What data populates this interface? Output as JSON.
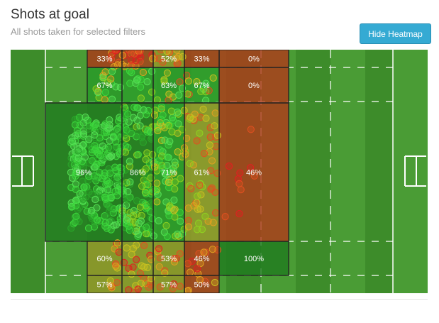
{
  "header": {
    "title": "Shots at goal",
    "subtitle": "All shots taken for selected filters",
    "heatmap_button": "Hide Heatmap"
  },
  "colors": {
    "grass_dark": "#3d8c2a",
    "grass_light": "#4a9c35",
    "zone_red": "#b03a1a",
    "zone_green": "#2a9e2a",
    "zone_darkgreen": "#1f7a1f",
    "zone_olive": "#9a9a2a",
    "button": "#35aad3"
  },
  "zones": [
    {
      "label": "33%",
      "color": "zone_red"
    },
    {
      "label": "52%",
      "color": "zone_olive"
    },
    {
      "label": "33%",
      "color": "zone_red"
    },
    {
      "label": "0%",
      "color": "zone_red"
    },
    {
      "label": "67%",
      "color": "zone_green"
    },
    {
      "label": "63%",
      "color": "zone_green"
    },
    {
      "label": "67%",
      "color": "zone_green"
    },
    {
      "label": "0%",
      "color": "zone_red"
    },
    {
      "label": "96%",
      "color": "zone_darkgreen"
    },
    {
      "label": "86%",
      "color": "zone_darkgreen"
    },
    {
      "label": "71%",
      "color": "zone_green"
    },
    {
      "label": "61%",
      "color": "zone_olive"
    },
    {
      "label": "46%",
      "color": "zone_red"
    },
    {
      "label": "60%",
      "color": "zone_olive"
    },
    {
      "label": "53%",
      "color": "zone_olive"
    },
    {
      "label": "46%",
      "color": "zone_red"
    },
    {
      "label": "100%",
      "color": "zone_darkgreen"
    },
    {
      "label": "57%",
      "color": "zone_olive"
    },
    {
      "label": "57%",
      "color": "zone_olive"
    },
    {
      "label": "50%",
      "color": "zone_red"
    }
  ]
}
